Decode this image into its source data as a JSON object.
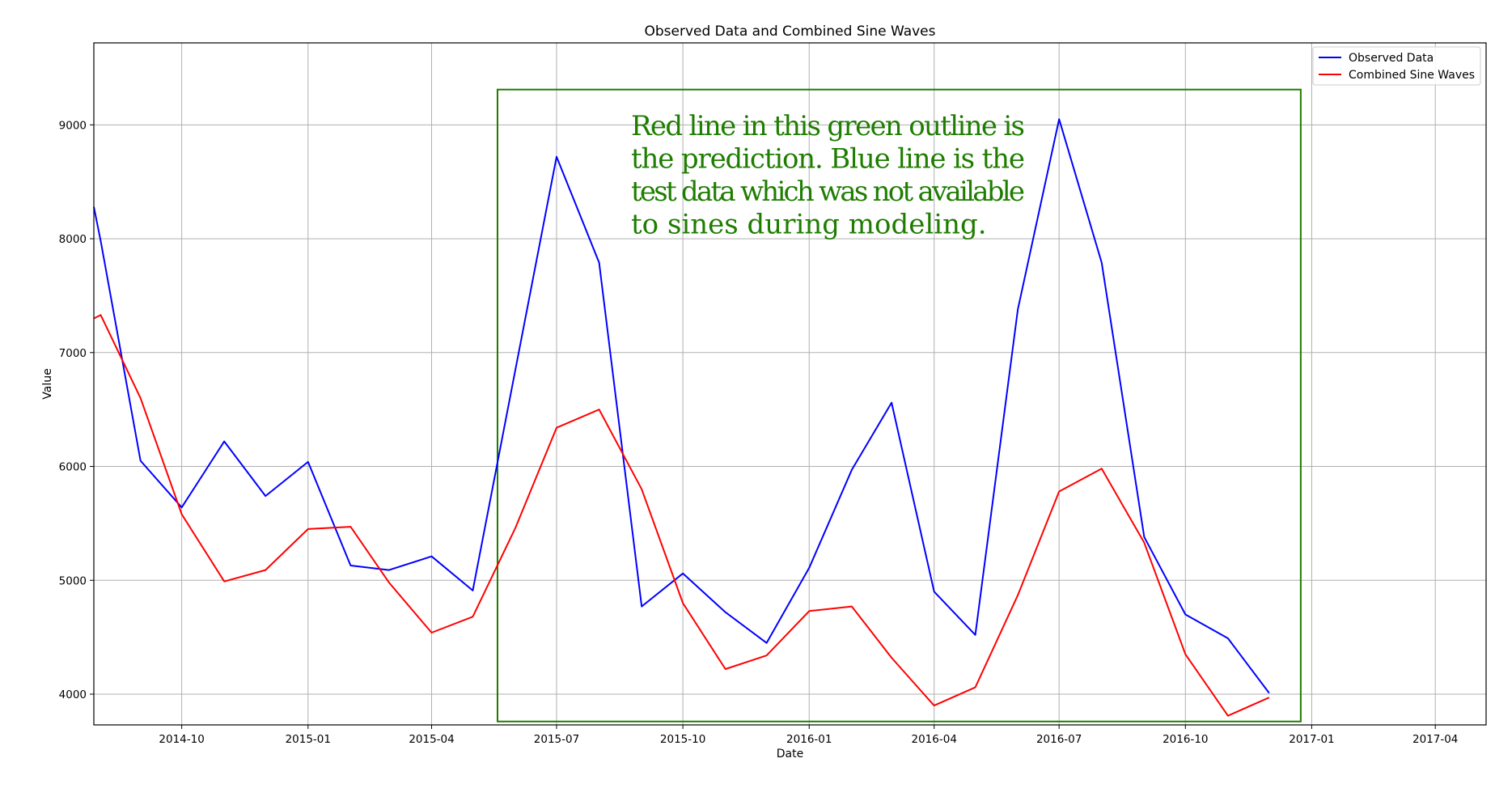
{
  "chart_data": {
    "type": "line",
    "title": "Observed Data and Combined Sine Waves",
    "xlabel": "Date",
    "ylabel": "Value",
    "x_ticks": [
      "2014-10",
      "2015-01",
      "2015-04",
      "2015-07",
      "2015-10",
      "2016-01",
      "2016-04",
      "2016-07",
      "2016-10",
      "2017-01",
      "2017-04"
    ],
    "y_ticks": [
      "4000",
      "5000",
      "6000",
      "7000",
      "8000",
      "9000"
    ],
    "ylim": [
      3730,
      9720
    ],
    "xlim": [
      "2014-07-29",
      "2017-05-08"
    ],
    "grid": true,
    "legend_position": "top-right",
    "series": [
      {
        "name": "Observed Data",
        "color": "#0000ff",
        "points": [
          [
            "2014-07-29",
            8280
          ],
          [
            "2014-08-03",
            7980
          ],
          [
            "2014-09-01",
            6050
          ],
          [
            "2014-10-01",
            5640
          ],
          [
            "2014-11-01",
            6220
          ],
          [
            "2014-12-01",
            5740
          ],
          [
            "2015-01-01",
            6040
          ],
          [
            "2015-02-01",
            5130
          ],
          [
            "2015-03-01",
            5090
          ],
          [
            "2015-04-01",
            5210
          ],
          [
            "2015-05-01",
            4910
          ],
          [
            "2015-06-01",
            6850
          ],
          [
            "2015-07-01",
            8720
          ],
          [
            "2015-08-01",
            7790
          ],
          [
            "2015-09-01",
            4770
          ],
          [
            "2015-10-01",
            5060
          ],
          [
            "2015-11-01",
            4720
          ],
          [
            "2015-12-01",
            4450
          ],
          [
            "2016-01-01",
            5110
          ],
          [
            "2016-02-01",
            5970
          ],
          [
            "2016-03-01",
            6560
          ],
          [
            "2016-04-01",
            4900
          ],
          [
            "2016-05-01",
            4520
          ],
          [
            "2016-06-01",
            7380
          ],
          [
            "2016-07-01",
            9050
          ],
          [
            "2016-08-01",
            7790
          ],
          [
            "2016-09-01",
            5380
          ],
          [
            "2016-10-01",
            4700
          ],
          [
            "2016-11-01",
            4490
          ],
          [
            "2016-12-01",
            4010
          ]
        ]
      },
      {
        "name": "Combined Sine Waves",
        "color": "#ff0000",
        "points": [
          [
            "2014-07-29",
            7300
          ],
          [
            "2014-08-03",
            7330
          ],
          [
            "2014-09-01",
            6600
          ],
          [
            "2014-10-01",
            5580
          ],
          [
            "2014-11-01",
            4990
          ],
          [
            "2014-12-01",
            5090
          ],
          [
            "2015-01-01",
            5450
          ],
          [
            "2015-02-01",
            5470
          ],
          [
            "2015-03-01",
            4980
          ],
          [
            "2015-04-01",
            4540
          ],
          [
            "2015-05-01",
            4680
          ],
          [
            "2015-06-01",
            5460
          ],
          [
            "2015-07-01",
            6340
          ],
          [
            "2015-08-01",
            6500
          ],
          [
            "2015-09-01",
            5800
          ],
          [
            "2015-10-01",
            4800
          ],
          [
            "2015-11-01",
            4220
          ],
          [
            "2015-12-01",
            4340
          ],
          [
            "2016-01-01",
            4730
          ],
          [
            "2016-02-01",
            4770
          ],
          [
            "2016-03-01",
            4320
          ],
          [
            "2016-04-01",
            3900
          ],
          [
            "2016-05-01",
            4060
          ],
          [
            "2016-06-01",
            4870
          ],
          [
            "2016-07-01",
            5780
          ],
          [
            "2016-08-01",
            5980
          ],
          [
            "2016-09-01",
            5330
          ],
          [
            "2016-10-01",
            4350
          ],
          [
            "2016-11-01",
            3810
          ],
          [
            "2016-12-01",
            3970
          ]
        ]
      }
    ],
    "highlight_box": {
      "x_start": "2015-05-19",
      "x_end": "2016-12-24",
      "y_start": 3760,
      "y_end": 9310,
      "color": "#1e7d00"
    },
    "annotation": {
      "lines": [
        "Red line in this green outline is",
        "the prediction. Blue line is the",
        "test data which was not available",
        "to sines during modeling."
      ],
      "color": "#1e7d00"
    }
  }
}
